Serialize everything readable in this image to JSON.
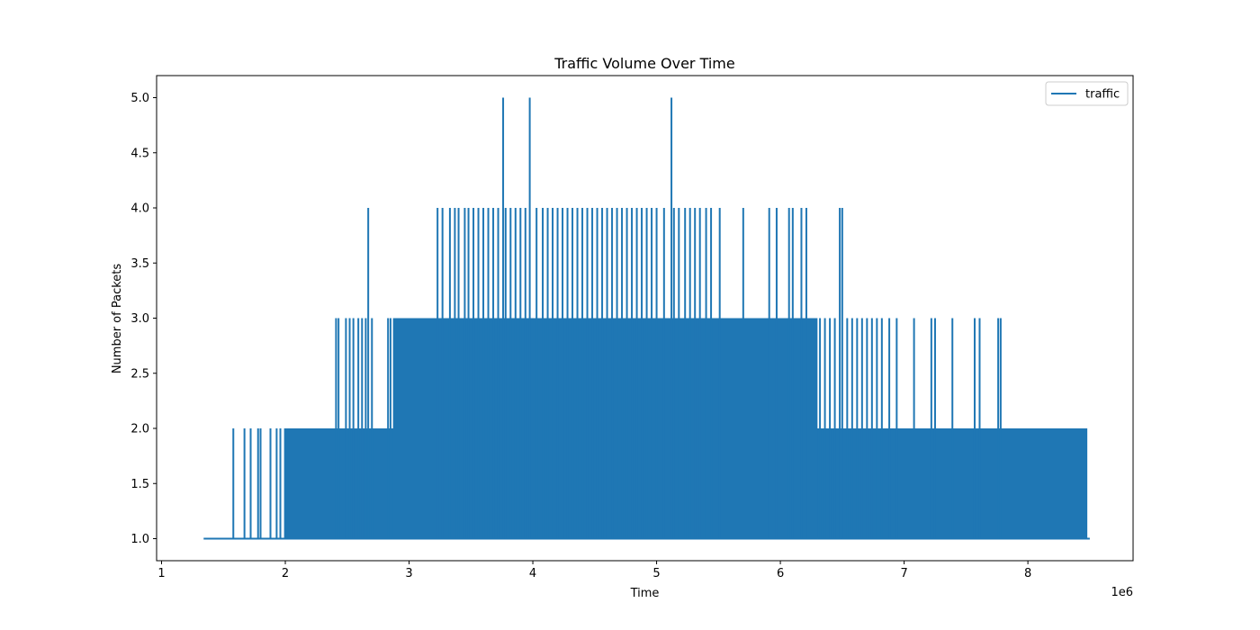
{
  "chart_data": {
    "type": "line",
    "title": "Traffic Volume Over Time",
    "xlabel": "Time",
    "ylabel": "Number of Packets",
    "x_offset_label": "1e6",
    "xlim": [
      960000,
      8850000
    ],
    "ylim": [
      0.8,
      5.2
    ],
    "x_ticks": [
      1000000,
      2000000,
      3000000,
      4000000,
      5000000,
      6000000,
      7000000,
      8000000
    ],
    "x_tick_labels": [
      "1",
      "2",
      "3",
      "4",
      "5",
      "6",
      "7",
      "8"
    ],
    "y_ticks": [
      1.0,
      1.5,
      2.0,
      2.5,
      3.0,
      3.5,
      4.0,
      4.5,
      5.0
    ],
    "y_tick_labels": [
      "1.0",
      "1.5",
      "2.0",
      "2.5",
      "3.0",
      "3.5",
      "4.0",
      "4.5",
      "5.0"
    ],
    "grid": false,
    "legend": {
      "position": "top-right"
    },
    "series": [
      {
        "name": "traffic",
        "color": "#1f77b4",
        "x_start": 1340000,
        "x_end": 8500000,
        "baseline": 1,
        "dense_bands": [
          {
            "x_start": 1990000,
            "x_end": 8480000,
            "y_max": 2
          },
          {
            "x_start": 2870000,
            "x_end": 6300000,
            "y_max": 3
          }
        ],
        "spikes": [
          {
            "x": 1580000,
            "y": 2
          },
          {
            "x": 1670000,
            "y": 2
          },
          {
            "x": 1720000,
            "y": 2
          },
          {
            "x": 1780000,
            "y": 2
          },
          {
            "x": 1800000,
            "y": 2
          },
          {
            "x": 1880000,
            "y": 2
          },
          {
            "x": 1930000,
            "y": 2
          },
          {
            "x": 1960000,
            "y": 2
          },
          {
            "x": 2410000,
            "y": 3
          },
          {
            "x": 2430000,
            "y": 3
          },
          {
            "x": 2490000,
            "y": 3
          },
          {
            "x": 2520000,
            "y": 3
          },
          {
            "x": 2550000,
            "y": 3
          },
          {
            "x": 2590000,
            "y": 3
          },
          {
            "x": 2620000,
            "y": 3
          },
          {
            "x": 2650000,
            "y": 3
          },
          {
            "x": 2670000,
            "y": 4
          },
          {
            "x": 2700000,
            "y": 3
          },
          {
            "x": 2830000,
            "y": 3
          },
          {
            "x": 2850000,
            "y": 3
          },
          {
            "x": 3230000,
            "y": 4
          },
          {
            "x": 3270000,
            "y": 4
          },
          {
            "x": 3330000,
            "y": 4
          },
          {
            "x": 3370000,
            "y": 4
          },
          {
            "x": 3400000,
            "y": 4
          },
          {
            "x": 3450000,
            "y": 4
          },
          {
            "x": 3480000,
            "y": 4
          },
          {
            "x": 3520000,
            "y": 4
          },
          {
            "x": 3560000,
            "y": 4
          },
          {
            "x": 3600000,
            "y": 4
          },
          {
            "x": 3640000,
            "y": 4
          },
          {
            "x": 3680000,
            "y": 4
          },
          {
            "x": 3720000,
            "y": 4
          },
          {
            "x": 3760000,
            "y": 5
          },
          {
            "x": 3780000,
            "y": 4
          },
          {
            "x": 3820000,
            "y": 4
          },
          {
            "x": 3860000,
            "y": 4
          },
          {
            "x": 3900000,
            "y": 4
          },
          {
            "x": 3940000,
            "y": 4
          },
          {
            "x": 3975000,
            "y": 5
          },
          {
            "x": 4030000,
            "y": 4
          },
          {
            "x": 4080000,
            "y": 4
          },
          {
            "x": 4120000,
            "y": 4
          },
          {
            "x": 4160000,
            "y": 4
          },
          {
            "x": 4200000,
            "y": 4
          },
          {
            "x": 4240000,
            "y": 4
          },
          {
            "x": 4280000,
            "y": 4
          },
          {
            "x": 4320000,
            "y": 4
          },
          {
            "x": 4360000,
            "y": 4
          },
          {
            "x": 4400000,
            "y": 4
          },
          {
            "x": 4440000,
            "y": 4
          },
          {
            "x": 4480000,
            "y": 4
          },
          {
            "x": 4520000,
            "y": 4
          },
          {
            "x": 4560000,
            "y": 4
          },
          {
            "x": 4600000,
            "y": 4
          },
          {
            "x": 4640000,
            "y": 4
          },
          {
            "x": 4680000,
            "y": 4
          },
          {
            "x": 4720000,
            "y": 4
          },
          {
            "x": 4760000,
            "y": 4
          },
          {
            "x": 4800000,
            "y": 4
          },
          {
            "x": 4840000,
            "y": 4
          },
          {
            "x": 4880000,
            "y": 4
          },
          {
            "x": 4920000,
            "y": 4
          },
          {
            "x": 4960000,
            "y": 4
          },
          {
            "x": 5000000,
            "y": 4
          },
          {
            "x": 5060000,
            "y": 4
          },
          {
            "x": 5120000,
            "y": 5
          },
          {
            "x": 5140000,
            "y": 4
          },
          {
            "x": 5180000,
            "y": 4
          },
          {
            "x": 5230000,
            "y": 4
          },
          {
            "x": 5270000,
            "y": 4
          },
          {
            "x": 5310000,
            "y": 4
          },
          {
            "x": 5350000,
            "y": 4
          },
          {
            "x": 5400000,
            "y": 4
          },
          {
            "x": 5440000,
            "y": 4
          },
          {
            "x": 5510000,
            "y": 4
          },
          {
            "x": 5700000,
            "y": 4
          },
          {
            "x": 5910000,
            "y": 4
          },
          {
            "x": 5970000,
            "y": 4
          },
          {
            "x": 6070000,
            "y": 4
          },
          {
            "x": 6100000,
            "y": 4
          },
          {
            "x": 6170000,
            "y": 4
          },
          {
            "x": 6210000,
            "y": 4
          },
          {
            "x": 6480000,
            "y": 4
          },
          {
            "x": 6500000,
            "y": 4
          },
          {
            "x": 6320000,
            "y": 3
          },
          {
            "x": 6360000,
            "y": 3
          },
          {
            "x": 6400000,
            "y": 3
          },
          {
            "x": 6440000,
            "y": 3
          },
          {
            "x": 6540000,
            "y": 3
          },
          {
            "x": 6580000,
            "y": 3
          },
          {
            "x": 6620000,
            "y": 3
          },
          {
            "x": 6660000,
            "y": 3
          },
          {
            "x": 6700000,
            "y": 3
          },
          {
            "x": 6740000,
            "y": 3
          },
          {
            "x": 6780000,
            "y": 3
          },
          {
            "x": 6820000,
            "y": 3
          },
          {
            "x": 6880000,
            "y": 3
          },
          {
            "x": 6940000,
            "y": 3
          },
          {
            "x": 7080000,
            "y": 3
          },
          {
            "x": 7220000,
            "y": 3
          },
          {
            "x": 7250000,
            "y": 3
          },
          {
            "x": 7390000,
            "y": 3
          },
          {
            "x": 7570000,
            "y": 3
          },
          {
            "x": 7610000,
            "y": 3
          },
          {
            "x": 7760000,
            "y": 3
          },
          {
            "x": 7780000,
            "y": 3
          }
        ]
      }
    ]
  }
}
